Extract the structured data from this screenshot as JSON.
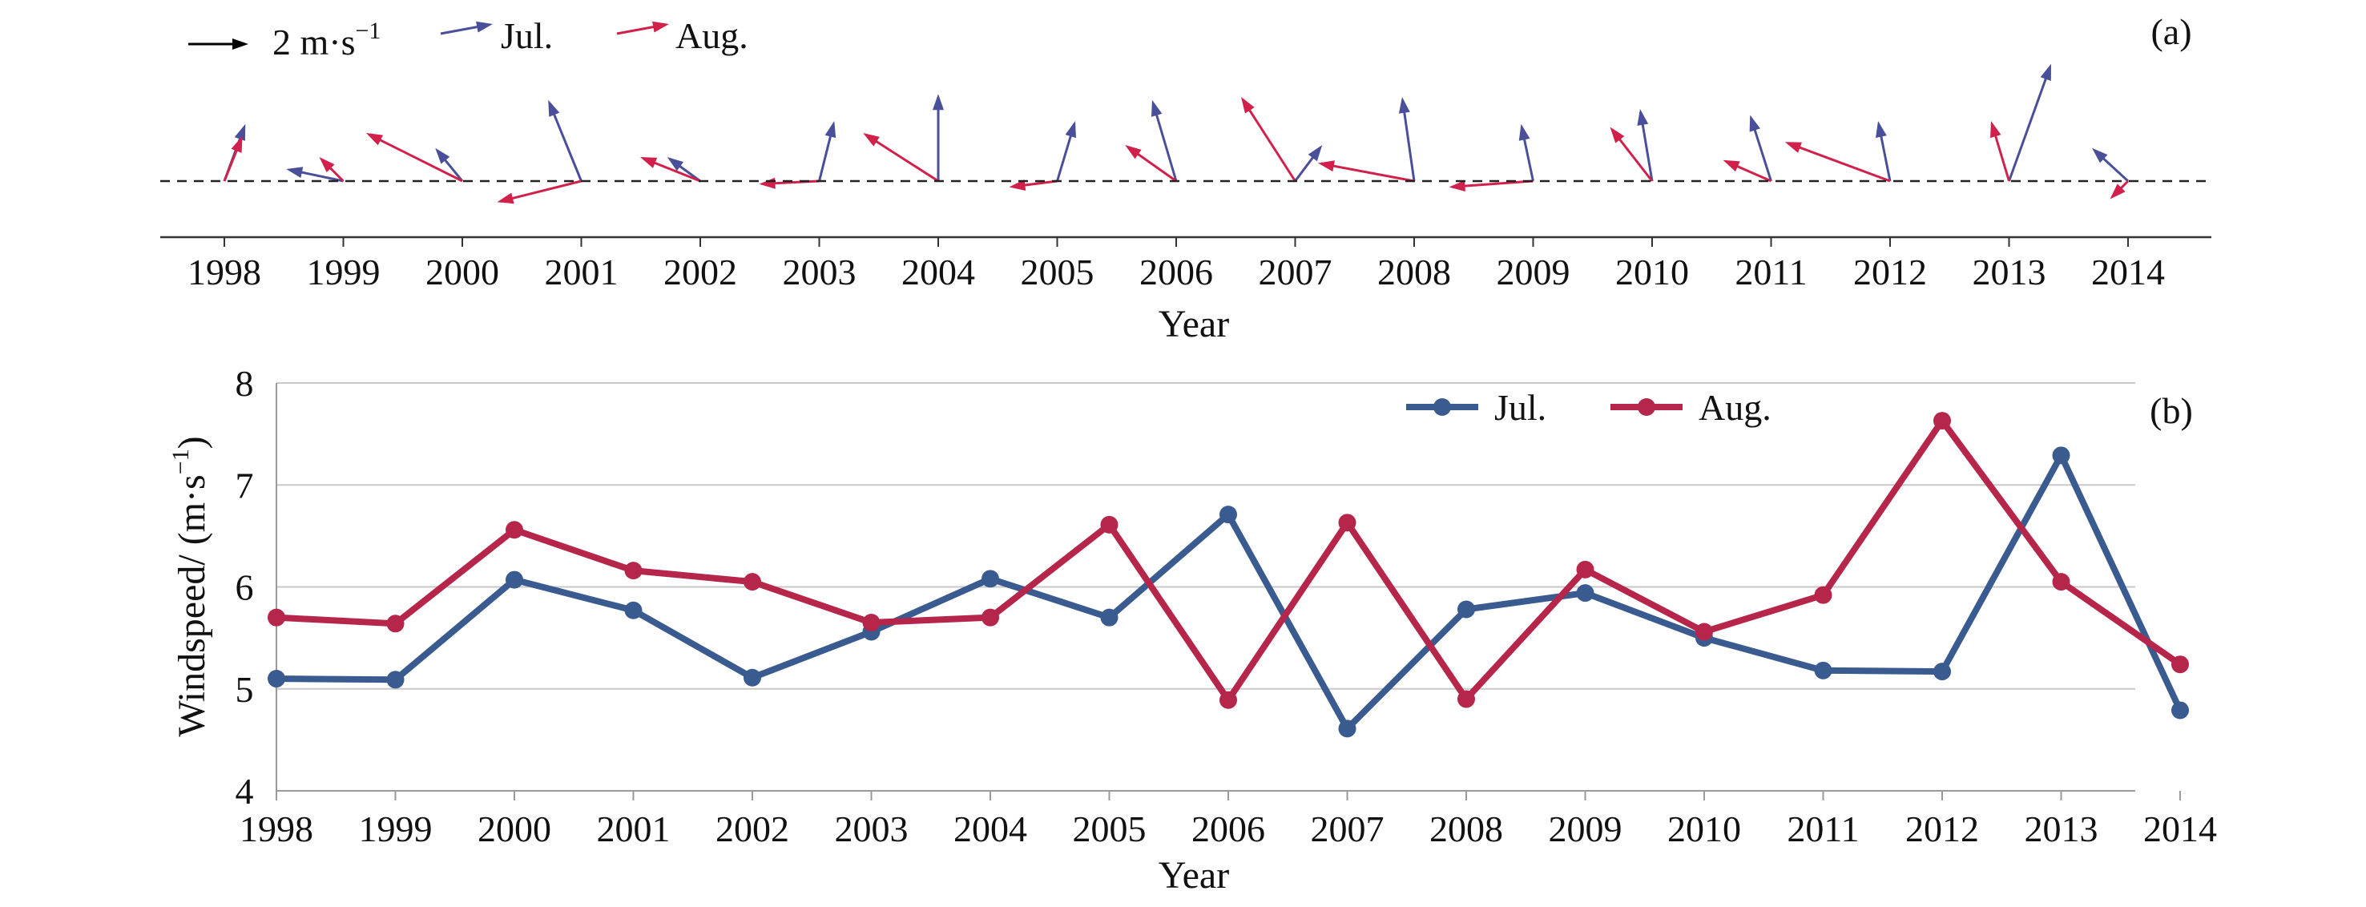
{
  "years": [
    "1998",
    "1999",
    "2000",
    "2001",
    "2002",
    "2003",
    "2004",
    "2005",
    "2006",
    "2007",
    "2008",
    "2009",
    "2010",
    "2011",
    "2012",
    "2013",
    "2014"
  ],
  "colors": {
    "jul": "#3a5b8f",
    "jul_arrow": "#4a4f9a",
    "aug": "#b5264a",
    "aug_arrow": "#d1204a",
    "ref_arrow": "#000000",
    "grid": "#c8c8c8",
    "axis": "#333333"
  },
  "chart_data": [
    {
      "type": "vector",
      "panel_label": "(a)",
      "xlabel": "Year",
      "reference_arrow": {
        "magnitude": 2,
        "label": "2 m·s",
        "exponent": "−1"
      },
      "legend": [
        {
          "key": "jul",
          "label": "Jul."
        },
        {
          "key": "aug",
          "label": "Aug."
        }
      ],
      "series": [
        {
          "key": "jul",
          "name": "Jul.",
          "u": [
            0.35,
            -0.95,
            -0.45,
            -0.55,
            -0.55,
            0.25,
            0.0,
            0.3,
            -0.4,
            0.45,
            -0.2,
            -0.2,
            -0.2,
            -0.35,
            -0.2,
            0.7,
            -0.6
          ],
          "v": [
            0.95,
            0.2,
            0.55,
            1.35,
            0.4,
            1.0,
            1.45,
            1.0,
            1.35,
            0.6,
            1.4,
            0.95,
            1.2,
            1.1,
            1.0,
            1.95,
            0.55
          ]
        },
        {
          "key": "aug",
          "name": "Aug.",
          "u": [
            0.3,
            -0.4,
            -1.6,
            -1.4,
            -1.0,
            -1.0,
            -1.25,
            -0.8,
            -0.85,
            -0.9,
            -1.6,
            -1.4,
            -0.7,
            -0.8,
            -1.75,
            -0.3,
            -0.3
          ],
          "v": [
            0.75,
            0.4,
            0.8,
            -0.35,
            0.4,
            -0.05,
            0.8,
            -0.1,
            0.6,
            1.4,
            0.3,
            -0.1,
            0.9,
            0.35,
            0.65,
            1.0,
            -0.3
          ]
        }
      ]
    },
    {
      "type": "line",
      "panel_label": "(b)",
      "xlabel": "Year",
      "ylabel": "Windspeed/ (m·s",
      "ylabel_exponent": "−1",
      "ylabel_close": ")",
      "ylim": [
        4,
        8
      ],
      "yticks": [
        "4",
        "5",
        "6",
        "7",
        "8"
      ],
      "grid": true,
      "legend_position": "top-right",
      "series": [
        {
          "key": "jul",
          "name": "Jul.",
          "values": [
            5.1,
            5.09,
            6.07,
            5.77,
            5.11,
            5.56,
            6.08,
            5.7,
            6.71,
            4.61,
            5.78,
            5.94,
            5.5,
            5.18,
            5.17,
            7.29,
            4.79
          ]
        },
        {
          "key": "aug",
          "name": "Aug.",
          "values": [
            5.7,
            5.64,
            6.56,
            6.16,
            6.05,
            5.65,
            5.7,
            6.61,
            4.89,
            6.63,
            4.9,
            6.17,
            5.56,
            5.92,
            7.63,
            6.05,
            5.24
          ]
        }
      ]
    }
  ]
}
